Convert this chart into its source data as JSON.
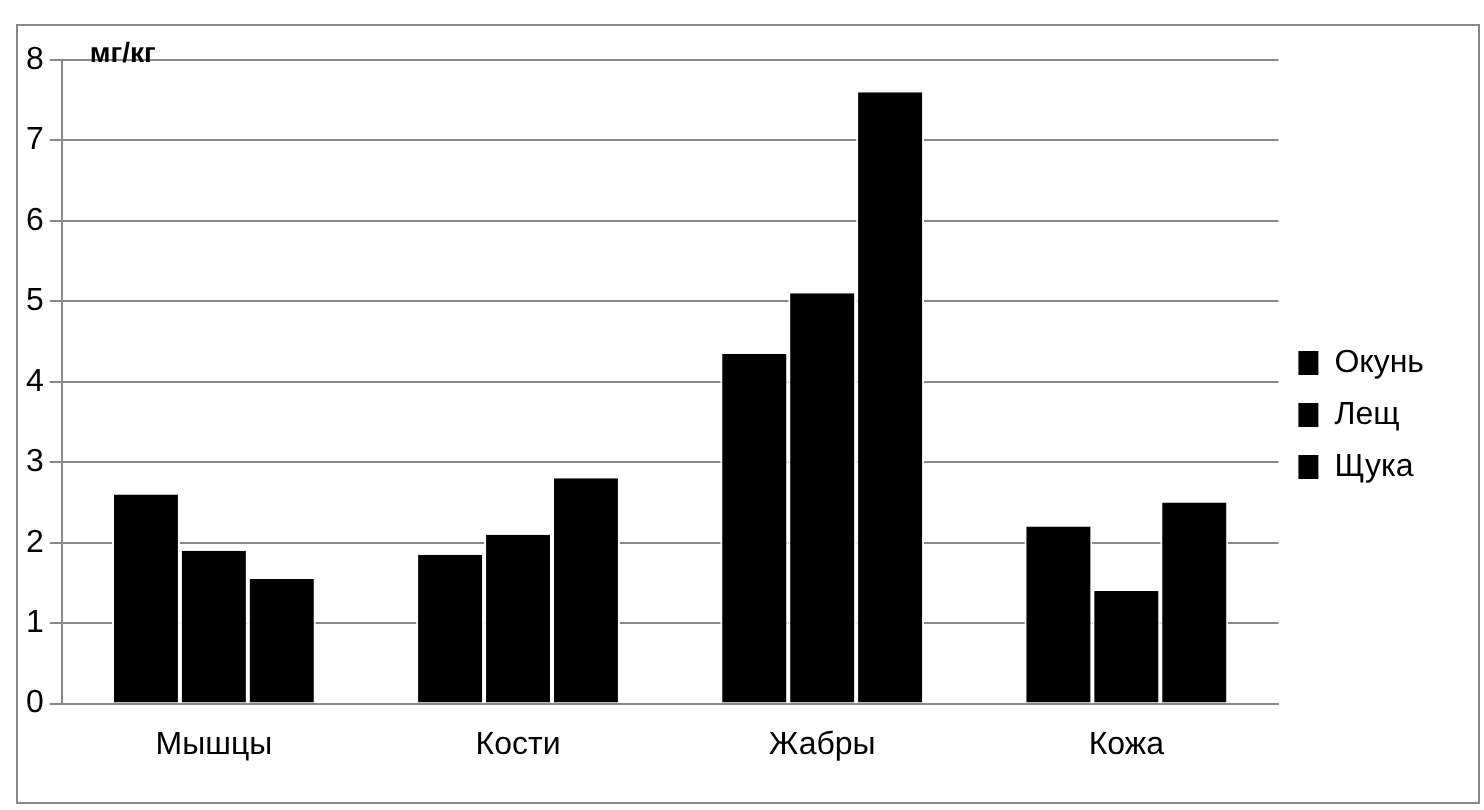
{
  "chart_data": {
    "type": "bar",
    "ylabel": "мг/кг",
    "categories": [
      "Мышцы",
      "Кости",
      "Жабры",
      "Кожа"
    ],
    "series": [
      {
        "name": "Окунь",
        "color": "#000000",
        "values": [
          2.6,
          1.85,
          4.35,
          2.2
        ]
      },
      {
        "name": "Лещ",
        "color": "#000000",
        "values": [
          1.9,
          2.1,
          5.1,
          1.4
        ]
      },
      {
        "name": "Щука",
        "color": "#000000",
        "values": [
          1.55,
          2.8,
          7.6,
          2.5
        ]
      }
    ],
    "ylim": [
      0,
      8
    ],
    "yticks": [
      0,
      1,
      2,
      3,
      4,
      5,
      6,
      7,
      8
    ],
    "grid": "y",
    "legend": "right"
  }
}
